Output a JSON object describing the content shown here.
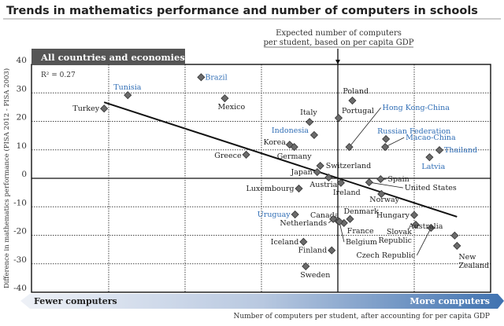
{
  "title": "Trends in mathematics performance and number of computers in schools",
  "panel_label": "All countries and economies",
  "annotation": [
    "Expected number of computers",
    "per student, based on per capita GDP"
  ],
  "colors": {
    "highlight_label": "#2f6db5",
    "marker": "#6b6b6b",
    "panel_bg": "#555555",
    "arrow_band": "#4f7fb8"
  },
  "arrow_band": {
    "left_label": "Fewer computers",
    "right_label": "More computers"
  },
  "chart_data": {
    "type": "scatter",
    "title": "Trends in mathematics performance and number of computers in schools",
    "xlabel": "Number of computers per student, after accounting for per capita GDP",
    "ylabel": "Difference in mathematics performance (PISA 2012 - PISA 2003)",
    "ylim": [
      -40,
      40
    ],
    "yticks": [
      "40",
      "30",
      "20",
      "10",
      "0",
      "-10",
      "-20",
      "-30",
      "-40"
    ],
    "x_ticks_printed": false,
    "grid": true,
    "r_squared": "R² = 0.27",
    "trendline": {
      "from": [
        -3.06,
        26.7
      ],
      "to": [
        1.56,
        -13.5
      ]
    },
    "reference_line_x": 0,
    "points": [
      {
        "name": "Turkey",
        "x": -3.06,
        "y": 24.5,
        "highlight": false
      },
      {
        "name": "Tunisia",
        "x": -2.75,
        "y": 29.2,
        "highlight": true
      },
      {
        "name": "Brazil",
        "x": -1.79,
        "y": 35.5,
        "highlight": true
      },
      {
        "name": "Mexico",
        "x": -1.48,
        "y": 28.1,
        "highlight": false
      },
      {
        "name": "Greece",
        "x": -1.2,
        "y": 8.3,
        "highlight": false
      },
      {
        "name": "Italy",
        "x": -0.37,
        "y": 19.8,
        "highlight": false
      },
      {
        "name": "Indonesia",
        "x": -0.31,
        "y": 15.2,
        "highlight": true
      },
      {
        "name": "Korea",
        "x": -0.63,
        "y": 11.8,
        "highlight": false
      },
      {
        "name": "Germany",
        "x": -0.57,
        "y": 11.0,
        "highlight": false
      },
      {
        "name": "Switzerland",
        "x": -0.23,
        "y": 4.4,
        "highlight": false
      },
      {
        "name": "Japan",
        "x": -0.27,
        "y": 2.2,
        "highlight": false
      },
      {
        "name": "Austria",
        "x": -0.12,
        "y": 0.3,
        "highlight": false
      },
      {
        "name": "Luxembourg",
        "x": -0.51,
        "y": -3.6,
        "highlight": false
      },
      {
        "name": "Portugal",
        "x": 0.01,
        "y": 21.2,
        "highlight": false
      },
      {
        "name": "Poland",
        "x": 0.19,
        "y": 27.3,
        "highlight": false
      },
      {
        "name": "Hong Kong-China",
        "x": 0.15,
        "y": 11.0,
        "highlight": true
      },
      {
        "name": "Russian Federation",
        "x": 0.63,
        "y": 13.8,
        "highlight": true
      },
      {
        "name": "Macao-China",
        "x": 0.62,
        "y": 11.0,
        "highlight": true
      },
      {
        "name": "Thailand",
        "x": 1.33,
        "y": 9.9,
        "highlight": true
      },
      {
        "name": "Latvia",
        "x": 1.2,
        "y": 7.4,
        "highlight": true
      },
      {
        "name": "Spain",
        "x": 0.56,
        "y": -0.3,
        "highlight": false
      },
      {
        "name": "United States",
        "x": 0.41,
        "y": -1.4,
        "highlight": false
      },
      {
        "name": "Ireland",
        "x": 0.04,
        "y": -1.6,
        "highlight": false
      },
      {
        "name": "Norway",
        "x": 0.57,
        "y": -5.5,
        "highlight": false
      },
      {
        "name": "Uruguay",
        "x": -0.56,
        "y": -12.7,
        "highlight": true
      },
      {
        "name": "Canada",
        "x": 0.0,
        "y": -14.9,
        "highlight": false
      },
      {
        "name": "Netherlands",
        "x": -0.06,
        "y": -14.3,
        "highlight": false
      },
      {
        "name": "Denmark",
        "x": 0.16,
        "y": -14.3,
        "highlight": false
      },
      {
        "name": "France",
        "x": 0.08,
        "y": -15.7,
        "highlight": false
      },
      {
        "name": "Belgium",
        "x": 0.02,
        "y": -15.2,
        "highlight": false
      },
      {
        "name": "Hungary",
        "x": 1.0,
        "y": -12.9,
        "highlight": false
      },
      {
        "name": "Slovak Republic",
        "x": 1.02,
        "y": -16.3,
        "highlight": false
      },
      {
        "name": "Czech Republic",
        "x": 1.22,
        "y": -17.4,
        "highlight": false
      },
      {
        "name": "Australia",
        "x": 1.53,
        "y": -20.1,
        "highlight": false
      },
      {
        "name": "New Zealand",
        "x": 1.56,
        "y": -23.7,
        "highlight": false
      },
      {
        "name": "Iceland",
        "x": -0.45,
        "y": -22.3,
        "highlight": false
      },
      {
        "name": "Finland",
        "x": -0.08,
        "y": -25.3,
        "highlight": false
      },
      {
        "name": "Sweden",
        "x": -0.42,
        "y": -30.9,
        "highlight": false
      }
    ]
  }
}
